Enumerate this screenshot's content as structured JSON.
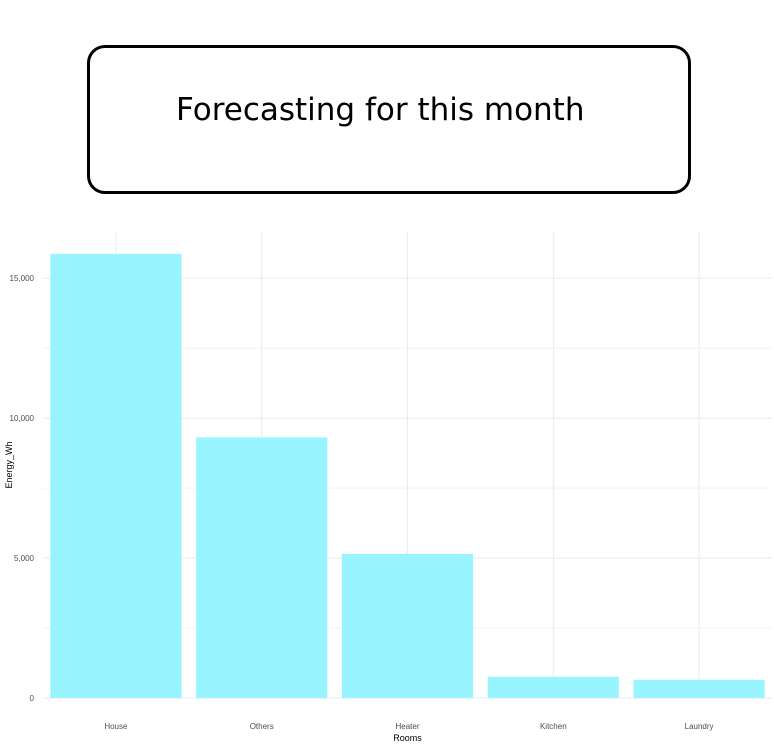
{
  "header": {
    "title": "Forecasting for this month"
  },
  "chart_data": {
    "type": "bar",
    "categories": [
      "House",
      "Others",
      "Heater",
      "Kitchen",
      "Laundry"
    ],
    "values": [
      15870,
      9310,
      5150,
      760,
      650
    ],
    "xlabel": "Rooms",
    "ylabel": "Energy_Wh",
    "ylim": [
      0,
      16650
    ],
    "yticks": [
      0,
      5000,
      10000,
      15000
    ],
    "ytick_labels": [
      "0",
      "5,000",
      "10,000",
      "15,000"
    ],
    "bar_color": "#98f5ff",
    "grid": true,
    "gridline_color": "#ebebeb",
    "legend": "none"
  }
}
